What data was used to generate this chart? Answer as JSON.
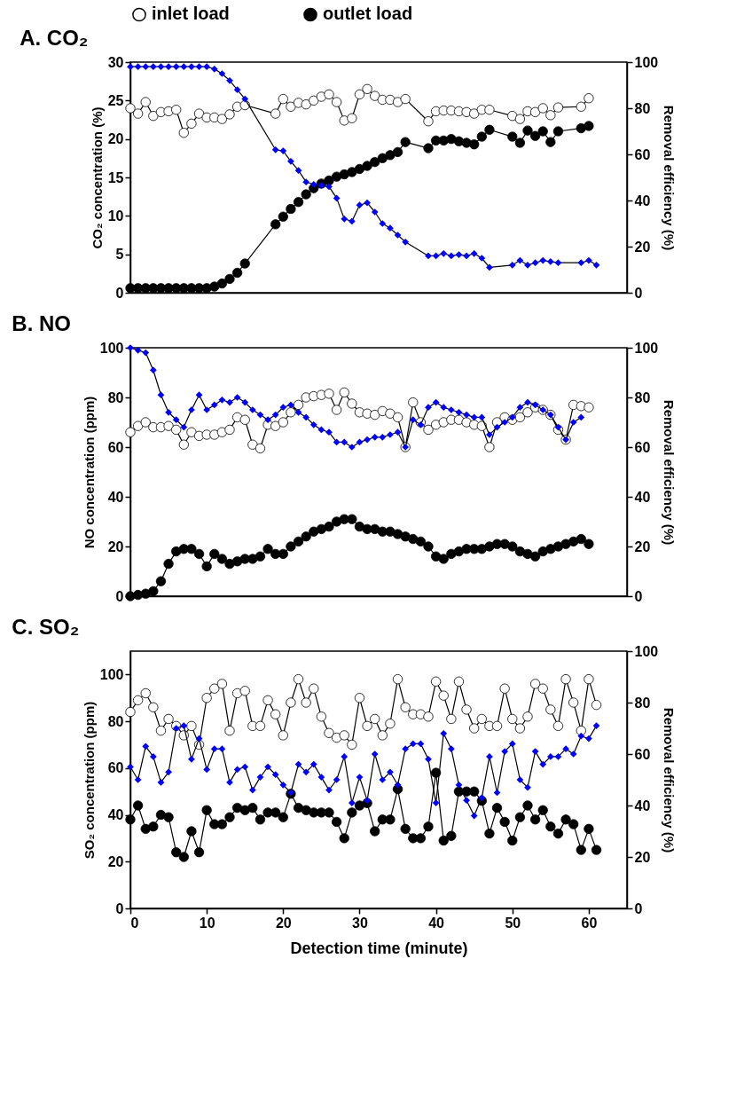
{
  "chart_data": [
    {
      "type": "line",
      "title": "A. CO₂",
      "ylabel": "CO₂ concentration (%)",
      "y2label": "Removal efficiency (%)",
      "xlim": [
        0,
        65
      ],
      "xticks": [
        0,
        10,
        20,
        30,
        40,
        50,
        60
      ],
      "ylim": [
        0,
        30
      ],
      "yticks": [
        0,
        5,
        10,
        15,
        20,
        25,
        30
      ],
      "y2lim": [
        0,
        100
      ],
      "y2ticks": [
        0,
        20,
        40,
        60,
        80,
        100
      ],
      "grid": false,
      "legend": "top",
      "tick_labels": "y",
      "series": [
        {
          "name": "inlet load",
          "color": "#ffffff",
          "marker": "circle",
          "x": [
            0,
            1,
            2,
            3,
            4,
            5,
            6,
            7,
            8,
            9,
            10,
            11,
            12,
            13,
            14,
            15,
            19,
            20,
            21,
            22,
            23,
            24,
            25,
            26,
            27,
            28,
            29,
            30,
            31,
            32,
            33,
            34,
            35,
            36,
            39,
            40,
            41,
            42,
            43,
            44,
            45,
            46,
            47,
            50,
            51,
            52,
            53,
            54,
            55,
            56,
            59,
            60
          ],
          "values": [
            24,
            23.3,
            24.8,
            23,
            23.5,
            23.6,
            23.8,
            20.8,
            22,
            23.3,
            22.8,
            22.8,
            22.6,
            23.2,
            24.2,
            24.4,
            23.3,
            25.2,
            24.2,
            24.7,
            24.5,
            25,
            25.5,
            25.8,
            24.8,
            22.4,
            22.7,
            25.8,
            26.5,
            25.6,
            25.1,
            25.1,
            24.8,
            25.2,
            22.3,
            23.6,
            23.7,
            23.7,
            23.6,
            23.5,
            23.3,
            23.8,
            23.8,
            23,
            22.6,
            23.6,
            23.5,
            24,
            23.1,
            24.1,
            24.2,
            25.3
          ]
        },
        {
          "name": "outlet load",
          "color": "#000000",
          "marker": "circle",
          "x": [
            0,
            1,
            2,
            3,
            4,
            5,
            6,
            7,
            8,
            9,
            10,
            11,
            12,
            13,
            14,
            15,
            19,
            20,
            21,
            22,
            23,
            24,
            25,
            26,
            27,
            28,
            29,
            30,
            31,
            32,
            33,
            34,
            35,
            36,
            39,
            40,
            41,
            42,
            43,
            44,
            45,
            46,
            47,
            50,
            51,
            52,
            53,
            54,
            55,
            56,
            59,
            60
          ],
          "values": [
            0.6,
            0.6,
            0.6,
            0.6,
            0.6,
            0.6,
            0.6,
            0.6,
            0.6,
            0.6,
            0.6,
            0.8,
            1.2,
            1.8,
            2.6,
            3.8,
            8.9,
            9.9,
            10.9,
            11.8,
            12.8,
            13.6,
            14.2,
            14.6,
            15.1,
            15.4,
            15.7,
            16.1,
            16.5,
            17,
            17.5,
            17.9,
            18.3,
            19.6,
            18.8,
            19.8,
            19.8,
            20,
            19.7,
            19.5,
            19.3,
            20.3,
            21.2,
            20.3,
            19.5,
            21.1,
            20.4,
            21,
            19.6,
            21,
            21.4,
            21.7
          ]
        },
        {
          "axis": "y2",
          "color": "#0000ff",
          "marker": "diamond",
          "x": [
            0,
            1,
            2,
            3,
            4,
            5,
            6,
            7,
            8,
            9,
            10,
            11,
            12,
            13,
            14,
            15,
            19,
            20,
            21,
            22,
            23,
            24,
            25,
            26,
            27,
            28,
            29,
            30,
            31,
            32,
            33,
            34,
            35,
            36,
            39,
            40,
            41,
            42,
            43,
            44,
            45,
            46,
            47,
            50,
            51,
            52,
            53,
            54,
            55,
            56,
            59,
            60,
            61
          ],
          "values": [
            98,
            98,
            98,
            98,
            98,
            98,
            98,
            98,
            98,
            98,
            98,
            97,
            95,
            92,
            88,
            84,
            62,
            61.5,
            57,
            53,
            48,
            47,
            46.5,
            46,
            41,
            32,
            31,
            38,
            39,
            35,
            30,
            28,
            25,
            22,
            16,
            16,
            17,
            16,
            16.5,
            16,
            17,
            15,
            11,
            12,
            14,
            12,
            13,
            14,
            13.5,
            13,
            13,
            14,
            12
          ]
        }
      ]
    },
    {
      "type": "line",
      "title": "B. NO",
      "ylabel": "NO concentration (ppm)",
      "y2label": "Removal efficiency (%)",
      "xlim": [
        0,
        65
      ],
      "xticks": [
        0,
        10,
        20,
        30,
        40,
        50,
        60
      ],
      "ylim": [
        0,
        100
      ],
      "yticks": [
        0,
        20,
        40,
        60,
        80,
        100
      ],
      "y2lim": [
        0,
        100
      ],
      "y2ticks": [
        0,
        20,
        40,
        60,
        80,
        100
      ],
      "grid": false,
      "tick_labels": "y",
      "series": [
        {
          "color": "#ffffff",
          "marker": "circle",
          "x": [
            0,
            1,
            2,
            3,
            4,
            5,
            6,
            7,
            8,
            9,
            10,
            11,
            12,
            13,
            14,
            15,
            16,
            17,
            18,
            19,
            20,
            21,
            22,
            23,
            24,
            25,
            26,
            27,
            28,
            29,
            30,
            31,
            32,
            33,
            34,
            35,
            36,
            37,
            38,
            39,
            40,
            41,
            42,
            43,
            44,
            45,
            46,
            47,
            48,
            49,
            50,
            51,
            52,
            53,
            54,
            55,
            56,
            57,
            58,
            59,
            60
          ],
          "values": [
            66,
            68.5,
            70,
            68,
            68,
            68.5,
            67,
            61,
            66,
            64.5,
            65,
            65,
            66,
            67,
            72,
            71,
            61,
            59.5,
            69,
            68.5,
            70,
            74,
            77,
            80,
            80.5,
            81,
            81.5,
            75,
            82,
            77.5,
            74,
            73.5,
            73,
            74.5,
            73.5,
            72,
            60,
            78,
            70,
            67,
            69,
            70,
            71,
            71,
            70,
            69,
            68.5,
            60,
            70,
            72,
            71,
            72,
            74,
            76,
            75,
            73,
            67,
            63,
            77,
            76.5,
            76
          ]
        },
        {
          "color": "#000000",
          "marker": "circle",
          "x": [
            0,
            1,
            2,
            3,
            4,
            5,
            6,
            7,
            8,
            9,
            10,
            11,
            12,
            13,
            14,
            15,
            16,
            17,
            18,
            19,
            20,
            21,
            22,
            23,
            24,
            25,
            26,
            27,
            28,
            29,
            30,
            31,
            32,
            33,
            34,
            35,
            36,
            37,
            38,
            39,
            40,
            41,
            42,
            43,
            44,
            45,
            46,
            47,
            48,
            49,
            50,
            51,
            52,
            53,
            54,
            55,
            56,
            57,
            58,
            59,
            60
          ],
          "values": [
            0,
            0.5,
            1,
            2,
            6,
            13,
            18,
            19,
            19,
            17,
            12,
            17,
            15,
            13,
            14,
            15,
            15,
            16,
            19,
            17,
            17,
            20,
            22,
            24,
            26,
            27,
            28,
            30,
            31,
            31,
            28,
            27,
            27,
            26,
            26,
            25,
            24,
            23,
            22,
            20,
            16,
            15,
            17,
            18,
            19,
            19,
            19,
            20,
            21,
            21,
            20,
            18,
            17,
            16,
            18,
            19,
            20,
            21,
            22,
            23,
            21
          ]
        },
        {
          "axis": "y2",
          "color": "#0000ff",
          "marker": "diamond",
          "x": [
            0,
            1,
            2,
            3,
            4,
            5,
            6,
            7,
            8,
            9,
            10,
            11,
            12,
            13,
            14,
            15,
            16,
            17,
            18,
            19,
            20,
            21,
            22,
            23,
            24,
            25,
            26,
            27,
            28,
            29,
            30,
            31,
            32,
            33,
            34,
            35,
            36,
            37,
            38,
            39,
            40,
            41,
            42,
            43,
            44,
            45,
            46,
            47,
            48,
            49,
            50,
            51,
            52,
            53,
            54,
            55,
            56,
            57,
            58,
            59
          ],
          "values": [
            100,
            99,
            98,
            91,
            81,
            74,
            71,
            68,
            75,
            81,
            75,
            77,
            79,
            78,
            80,
            78,
            75,
            73,
            71,
            73,
            76,
            77,
            74,
            72,
            69,
            67,
            66,
            62,
            62,
            60,
            62,
            63,
            64,
            64,
            65,
            66,
            60,
            71,
            69,
            76,
            78,
            76,
            75,
            74,
            73,
            72,
            72,
            65,
            68,
            70,
            72,
            76,
            78,
            77,
            75,
            73,
            68,
            63,
            70,
            72
          ]
        }
      ]
    },
    {
      "type": "line",
      "title": "C. SO₂",
      "xlabel": "Detection time (minute)",
      "ylabel": "SO₂ concentration (ppm)",
      "y2label": "Removal efficiency (%)",
      "xlim": [
        0,
        65
      ],
      "xticks": [
        0,
        10,
        20,
        30,
        40,
        50,
        60
      ],
      "ylim": [
        0,
        110
      ],
      "yticks": [
        0,
        20,
        40,
        60,
        80,
        100
      ],
      "y2lim": [
        0,
        100
      ],
      "y2ticks": [
        0,
        20,
        40,
        60,
        80,
        100
      ],
      "grid": false,
      "series": [
        {
          "color": "#ffffff",
          "marker": "circle",
          "x": [
            0,
            1,
            2,
            3,
            4,
            5,
            6,
            7,
            8,
            9,
            10,
            11,
            12,
            13,
            14,
            15,
            16,
            17,
            18,
            19,
            20,
            21,
            22,
            23,
            24,
            25,
            26,
            27,
            28,
            29,
            30,
            31,
            32,
            33,
            34,
            35,
            36,
            37,
            38,
            39,
            40,
            41,
            42,
            43,
            44,
            45,
            46,
            47,
            48,
            49,
            50,
            51,
            52,
            53,
            54,
            55,
            56,
            57,
            58,
            59,
            60,
            61
          ],
          "values": [
            84,
            89,
            92,
            86,
            76,
            81,
            78,
            74,
            78,
            70,
            90,
            94,
            96,
            76,
            92,
            93,
            78,
            78,
            89,
            83,
            74,
            88,
            98,
            88,
            94,
            82,
            75,
            73,
            74,
            70,
            90,
            78,
            81,
            74,
            79,
            98,
            86,
            83,
            83,
            82,
            97,
            91,
            81,
            97,
            85,
            77,
            81,
            78,
            78,
            94,
            81,
            77,
            82,
            96,
            94,
            85,
            78,
            98,
            88,
            76,
            98,
            87
          ]
        },
        {
          "color": "#000000",
          "marker": "circle",
          "x": [
            0,
            1,
            2,
            3,
            4,
            5,
            6,
            7,
            8,
            9,
            10,
            11,
            12,
            13,
            14,
            15,
            16,
            17,
            18,
            19,
            20,
            21,
            22,
            23,
            24,
            25,
            26,
            27,
            28,
            29,
            30,
            31,
            32,
            33,
            34,
            35,
            36,
            37,
            38,
            39,
            40,
            41,
            42,
            43,
            44,
            45,
            46,
            47,
            48,
            49,
            50,
            51,
            52,
            53,
            54,
            55,
            56,
            57,
            58,
            59,
            60,
            61
          ],
          "values": [
            38,
            44,
            34,
            35,
            40,
            39,
            24,
            22,
            33,
            24,
            42,
            36,
            36,
            39,
            43,
            42,
            43,
            38,
            41,
            41,
            39,
            49,
            43,
            42,
            41,
            41,
            41,
            37,
            30,
            41,
            44,
            45,
            33,
            38,
            38,
            51,
            34,
            30,
            30,
            35,
            58,
            29,
            31,
            50,
            50,
            50,
            46,
            32,
            43,
            37,
            29,
            39,
            44,
            38,
            42,
            35,
            32,
            38,
            36,
            25,
            34,
            25
          ]
        },
        {
          "axis": "y2",
          "color": "#0000ff",
          "marker": "diamond",
          "x": [
            0,
            1,
            2,
            3,
            4,
            5,
            6,
            7,
            8,
            9,
            10,
            11,
            12,
            13,
            14,
            15,
            16,
            17,
            18,
            19,
            20,
            21,
            22,
            23,
            24,
            25,
            26,
            27,
            28,
            29,
            30,
            31,
            32,
            33,
            34,
            35,
            36,
            37,
            38,
            39,
            40,
            41,
            42,
            43,
            44,
            45,
            46,
            47,
            48,
            49,
            50,
            51,
            52,
            53,
            54,
            55,
            56,
            57,
            58,
            59,
            60,
            61
          ],
          "values": [
            55,
            50,
            63,
            59,
            49,
            53,
            70,
            71,
            58,
            66,
            54,
            62,
            62,
            49,
            54,
            55,
            46,
            51,
            55,
            52,
            48,
            45,
            56,
            53,
            56,
            51,
            46,
            50,
            59,
            41,
            51,
            42,
            60,
            50,
            53,
            48,
            62,
            64,
            64,
            58,
            41,
            68,
            62,
            48,
            42,
            36,
            43,
            59,
            45,
            61,
            64,
            50,
            47,
            61,
            56,
            59,
            59,
            62,
            60,
            67,
            66,
            71
          ]
        }
      ]
    }
  ]
}
